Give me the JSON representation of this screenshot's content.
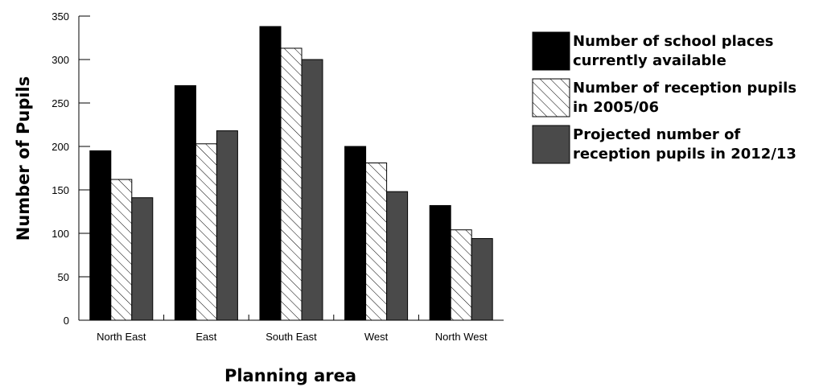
{
  "chart_data": {
    "type": "bar",
    "title": "",
    "xlabel": "Planning area",
    "ylabel": "Number of Pupils",
    "ylim": [
      0,
      350
    ],
    "yticks": [
      0,
      50,
      100,
      150,
      200,
      250,
      300,
      350
    ],
    "grid": false,
    "legend_position": "right",
    "categories": [
      "North East",
      "East",
      "South East",
      "West",
      "North West"
    ],
    "series": [
      {
        "name": "Number of school places currently available",
        "legend_lines": [
          "Number of school places",
          "currently available"
        ],
        "fill": "solid",
        "color": "#000000",
        "values": [
          195,
          270,
          338,
          200,
          132
        ]
      },
      {
        "name": "Number of reception pupils in 2005/06",
        "legend_lines": [
          "Number of reception pupils",
          "in 2005/06"
        ],
        "fill": "hatched",
        "color": "#ffffff",
        "values": [
          162,
          203,
          313,
          181,
          104
        ]
      },
      {
        "name": "Projected number of reception pupils in 2012/13",
        "legend_lines": [
          "Projected number of",
          "reception pupils in 2012/13"
        ],
        "fill": "solid",
        "color": "#4a4a4a",
        "values": [
          141,
          218,
          300,
          148,
          94
        ]
      }
    ]
  }
}
